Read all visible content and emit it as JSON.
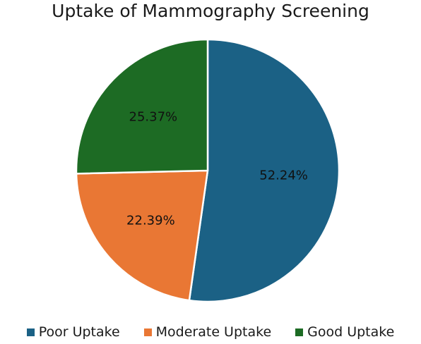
{
  "chart_data": {
    "type": "pie",
    "title": "Uptake of Mammography Screening",
    "categories": [
      "Poor Uptake",
      "Moderate Uptake",
      "Good Uptake"
    ],
    "values": [
      52.24,
      22.39,
      25.37
    ],
    "labels": [
      "52.24%",
      "22.39%",
      "25.37%"
    ],
    "colors": [
      "#1b6185",
      "#e97734",
      "#1d6b24"
    ],
    "legend_position": "bottom",
    "start": "top",
    "direction": "clockwise"
  }
}
